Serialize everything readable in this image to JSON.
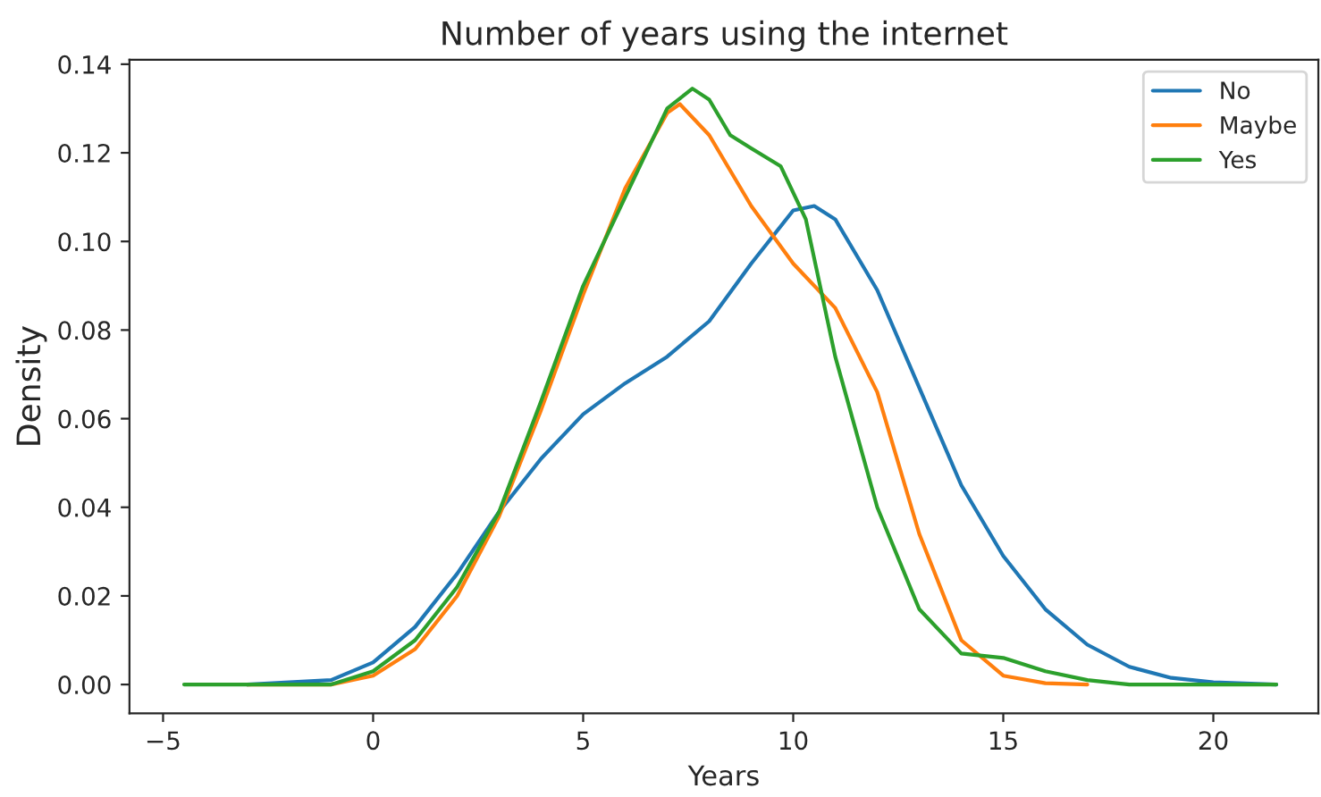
{
  "chart_data": {
    "type": "line",
    "title": "Number of years using the internet",
    "xlabel": "Years",
    "ylabel": "Density",
    "series": [
      {
        "name": "No",
        "color": "#1f77b4",
        "x": [
          -3,
          -1,
          0,
          1,
          2,
          3,
          4,
          5,
          6,
          7,
          8,
          9,
          10,
          10.5,
          11,
          12,
          13,
          14,
          15,
          16,
          17,
          18,
          19,
          20,
          21.5
        ],
        "values": [
          0,
          0.001,
          0.005,
          0.013,
          0.025,
          0.039,
          0.051,
          0.061,
          0.068,
          0.074,
          0.082,
          0.095,
          0.107,
          0.108,
          0.105,
          0.089,
          0.067,
          0.045,
          0.029,
          0.017,
          0.009,
          0.004,
          0.0015,
          0.0005,
          0
        ]
      },
      {
        "name": "Maybe",
        "color": "#ff7f0e",
        "x": [
          -3,
          -1,
          0,
          1,
          2,
          3,
          4,
          5,
          6,
          7,
          7.3,
          8,
          9,
          10,
          11,
          12,
          13,
          14,
          15,
          16,
          17
        ],
        "values": [
          0,
          0,
          0.002,
          0.008,
          0.02,
          0.038,
          0.062,
          0.088,
          0.112,
          0.129,
          0.131,
          0.124,
          0.108,
          0.095,
          0.085,
          0.066,
          0.034,
          0.01,
          0.002,
          0.0003,
          0
        ]
      },
      {
        "name": "Yes",
        "color": "#2ca02c",
        "x": [
          -4.5,
          -1,
          0,
          1,
          2,
          3,
          4,
          5,
          6,
          7,
          7.6,
          8,
          8.5,
          9,
          9.7,
          10.3,
          11,
          12,
          13,
          14,
          15,
          16,
          17,
          18,
          21.5
        ],
        "values": [
          0,
          0,
          0.003,
          0.01,
          0.022,
          0.039,
          0.064,
          0.09,
          0.11,
          0.13,
          0.1345,
          0.132,
          0.124,
          0.121,
          0.117,
          0.105,
          0.074,
          0.04,
          0.017,
          0.007,
          0.006,
          0.003,
          0.001,
          0,
          0
        ]
      }
    ],
    "xlim": [
      -5.8,
      22.5
    ],
    "ylim": [
      -0.0065,
      0.141
    ],
    "xticks": [
      {
        "value": -5,
        "label": "−5"
      },
      0,
      5,
      10,
      15,
      20
    ],
    "yticks": [
      {
        "value": 0,
        "label": "0.00"
      },
      {
        "value": 0.02,
        "label": "0.02"
      },
      {
        "value": 0.04,
        "label": "0.04"
      },
      {
        "value": 0.06,
        "label": "0.06"
      },
      {
        "value": 0.08,
        "label": "0.08"
      },
      {
        "value": 0.1,
        "label": "0.10"
      },
      {
        "value": 0.12,
        "label": "0.12"
      },
      {
        "value": 0.14,
        "label": "0.14"
      }
    ],
    "grid": false,
    "legend": "top right"
  }
}
